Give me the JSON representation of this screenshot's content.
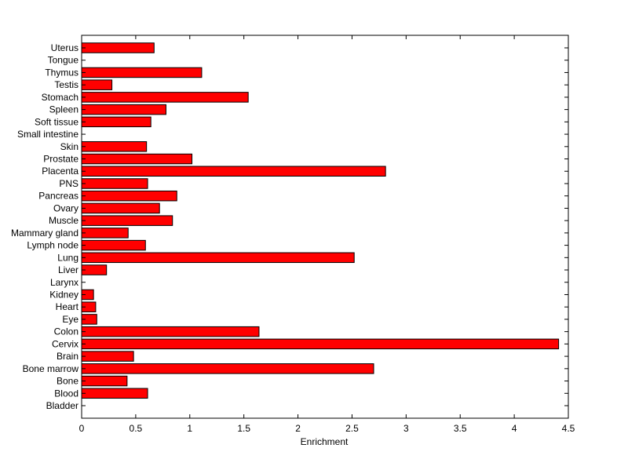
{
  "chart_data": {
    "type": "bar",
    "orientation": "horizontal",
    "xlabel": "Enrichment",
    "xlim": [
      0,
      4.5
    ],
    "xticks": [
      "0",
      "0.5",
      "1",
      "1.5",
      "2",
      "2.5",
      "3",
      "3.5",
      "4",
      "4.5"
    ],
    "grid": false,
    "bar_color": "#ff0000",
    "bar_edge_color": "#000000",
    "categories": [
      "Uterus",
      "Tongue",
      "Thymus",
      "Testis",
      "Stomach",
      "Spleen",
      "Soft tissue",
      "Small intestine",
      "Skin",
      "Prostate",
      "Placenta",
      "PNS",
      "Pancreas",
      "Ovary",
      "Muscle",
      "Mammary gland",
      "Lymph node",
      "Lung",
      "Liver",
      "Larynx",
      "Kidney",
      "Heart",
      "Eye",
      "Colon",
      "Cervix",
      "Brain",
      "Bone marrow",
      "Bone",
      "Blood",
      "Bladder"
    ],
    "values": [
      0.67,
      0,
      1.11,
      0.28,
      1.54,
      0.78,
      0.64,
      0,
      0.6,
      1.02,
      2.81,
      0.61,
      0.88,
      0.72,
      0.84,
      0.43,
      0.59,
      2.52,
      0.23,
      0,
      0.11,
      0.13,
      0.14,
      1.64,
      4.41,
      0.48,
      2.7,
      0.42,
      0.61,
      0
    ]
  }
}
